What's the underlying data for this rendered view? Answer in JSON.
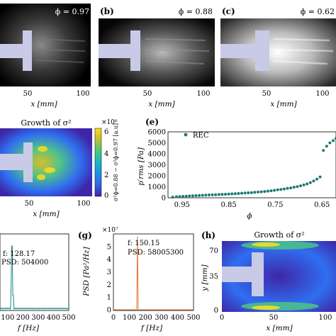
{
  "panel_a": {
    "phi_label": "ϕ = 0.97",
    "x_ticks": [
      "50",
      "100"
    ],
    "xlabel": "x [mm]"
  },
  "panel_b": {
    "letter": "(b)",
    "phi_label": "ϕ = 0.88",
    "x_ticks": [
      "50",
      "100"
    ],
    "xlabel": "x [mm]"
  },
  "panel_c": {
    "letter": "(c)",
    "phi_label": "ϕ = 0.62",
    "x_ticks": [
      "50",
      "100"
    ],
    "xlabel": "x [mm]"
  },
  "panel_d": {
    "title": "Growth of σ²",
    "x_ticks": [
      "50",
      "100"
    ],
    "xlabel": "x [mm]",
    "colorbar": {
      "exponent": "×10⁶",
      "ticks": [
        "6",
        "4",
        "2",
        "0"
      ],
      "label": "σ²ϕ=0.88 − σ²ϕ=0.97 [a.u]",
      "colors": [
        "#3e26a8",
        "#2f6ff0",
        "#13aed5",
        "#3fcb7f",
        "#c9c02f",
        "#fadd1f"
      ]
    }
  },
  "panel_e": {
    "letter": "(e)",
    "legend": "REC",
    "xlabel": "ϕ",
    "ylabel": "p′rms [Pa]"
  },
  "panel_f": {
    "f_label": "f: 128.17",
    "psd_label": "PSD: 504000",
    "x_ticks": [
      "100",
      "200",
      "300",
      "400",
      "500"
    ],
    "xlabel": "f [Hz]"
  },
  "panel_g": {
    "letter": "(g)",
    "exponent": "×10⁷",
    "y_ticks": [
      "5",
      "4",
      "3",
      "2",
      "1",
      "0"
    ],
    "f_label": "f: 150.15",
    "psd_label": "PSD: 58005300",
    "x_ticks": [
      "0",
      "100",
      "200",
      "300",
      "400",
      "500"
    ],
    "xlabel": "f [Hz]",
    "ylabel": "PSD [Pa²/Hz]"
  },
  "panel_h": {
    "letter": "(h)",
    "title": "Growth of σ²",
    "y_ticks": [
      "70",
      "35",
      "0"
    ],
    "x_ticks": [
      "0",
      "50",
      "100"
    ],
    "xlabel": "x [mm]",
    "ylabel": "y [mm]"
  },
  "chart_data": [
    {
      "type": "scatter",
      "panel": "e",
      "series": [
        {
          "name": "REC",
          "color": "#1a7a73",
          "x": [
            0.97,
            0.962,
            0.955,
            0.948,
            0.941,
            0.934,
            0.927,
            0.92,
            0.913,
            0.906,
            0.899,
            0.892,
            0.885,
            0.878,
            0.871,
            0.864,
            0.857,
            0.85,
            0.843,
            0.836,
            0.829,
            0.822,
            0.815,
            0.808,
            0.801,
            0.794,
            0.787,
            0.78,
            0.773,
            0.766,
            0.759,
            0.752,
            0.745,
            0.738,
            0.731,
            0.724,
            0.717,
            0.71,
            0.703,
            0.696,
            0.689,
            0.682,
            0.675,
            0.668,
            0.661,
            0.654,
            0.647,
            0.64,
            0.633,
            0.626,
            0.62
          ],
          "y": [
            60,
            90,
            110,
            130,
            150,
            165,
            180,
            195,
            210,
            225,
            240,
            255,
            265,
            280,
            295,
            310,
            325,
            340,
            355,
            370,
            390,
            410,
            430,
            450,
            470,
            495,
            520,
            545,
            575,
            605,
            640,
            680,
            720,
            760,
            800,
            850,
            900,
            960,
            1020,
            1090,
            1170,
            1260,
            1380,
            1520,
            1700,
            1900,
            4300,
            4700,
            5000,
            5200,
            5400
          ]
        }
      ],
      "xlim": [
        0.98,
        0.62
      ],
      "ylim": [
        0,
        6000
      ],
      "x_ticks": [
        0.95,
        0.85,
        0.75,
        0.65
      ],
      "y_ticks": [
        0,
        1000,
        2000,
        3000,
        4000,
        5000,
        6000
      ],
      "xlabel": "ϕ",
      "ylabel": "p′rms [Pa]",
      "legend": "top-left"
    },
    {
      "type": "line",
      "panel": "f",
      "peak": {
        "x": 128.17,
        "y": 504000
      },
      "xlim": [
        50,
        500
      ],
      "color": "#1a8a80"
    },
    {
      "type": "line",
      "panel": "g",
      "peak": {
        "x": 150.15,
        "y": 58005300
      },
      "xlim": [
        0,
        500
      ],
      "ylim": [
        0,
        60000000
      ],
      "color": "#e2762e"
    }
  ]
}
